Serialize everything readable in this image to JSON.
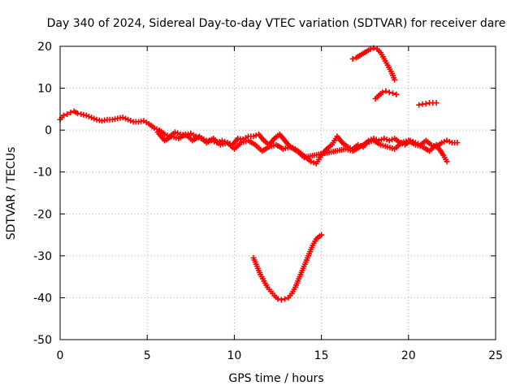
{
  "chart_data": {
    "type": "scatter",
    "title": "Day 340 of 2024, Sidereal Day-to-day VTEC variation (SDTVAR) for receiver dare",
    "xlabel": "GPS time / hours",
    "ylabel": "SDTVAR / TECUs",
    "xlim": [
      0,
      25
    ],
    "ylim": [
      -50,
      20
    ],
    "xticks": [
      0,
      5,
      10,
      15,
      20,
      25
    ],
    "yticks": [
      -50,
      -40,
      -30,
      -20,
      -10,
      0,
      10,
      20
    ],
    "grid": true,
    "marker": "plus",
    "series": [
      {
        "name": "main-band",
        "color": "#ff0000",
        "x": [
          0.0,
          0.2,
          0.4,
          0.6,
          0.8,
          1.0,
          1.2,
          1.5,
          1.8,
          2.1,
          2.4,
          2.7,
          3.0,
          3.3,
          3.6,
          3.9,
          4.2,
          4.5,
          4.8,
          5.1,
          5.4,
          5.7,
          6.0,
          6.3,
          6.6,
          6.9,
          7.2,
          7.5,
          7.8,
          8.1,
          8.4,
          8.7,
          9.0,
          9.3,
          9.6,
          9.9,
          10.2,
          10.5,
          10.8,
          11.1,
          11.4,
          11.7,
          12.0,
          12.3,
          12.6,
          12.9,
          13.2,
          13.5,
          13.8,
          14.1,
          14.4,
          14.7,
          15.0,
          15.3,
          15.6,
          15.9,
          16.2,
          16.5,
          16.8,
          17.1,
          17.4,
          17.7,
          18.0,
          18.3,
          18.6,
          18.9,
          19.2,
          19.5,
          19.8,
          20.1,
          20.4,
          20.7,
          21.0,
          21.3,
          21.6,
          21.9,
          22.2,
          22.5,
          22.8
        ],
        "y": [
          2.5,
          3.5,
          3.8,
          4.2,
          4.5,
          4.0,
          3.8,
          3.5,
          3.0,
          2.5,
          2.2,
          2.5,
          2.5,
          2.8,
          3.0,
          2.5,
          2.0,
          2.0,
          2.2,
          1.5,
          0.5,
          0.0,
          -1.0,
          -1.5,
          -0.5,
          -1.0,
          -1.2,
          -0.8,
          -1.5,
          -2.0,
          -2.5,
          -2.5,
          -3.0,
          -2.5,
          -3.0,
          -3.5,
          -2.0,
          -2.2,
          -1.5,
          -1.5,
          -1.0,
          -2.5,
          -3.5,
          -2.0,
          -1.0,
          -2.5,
          -4.0,
          -4.5,
          -5.5,
          -6.5,
          -7.5,
          -8.0,
          -6.0,
          -4.5,
          -3.5,
          -1.5,
          -3.0,
          -4.0,
          -4.5,
          -3.5,
          -4.0,
          -2.5,
          -2.0,
          -2.5,
          -2.0,
          -2.5,
          -2.0,
          -3.0,
          -3.5,
          -2.5,
          -3.0,
          -3.5,
          -2.5,
          -3.5,
          -4.0,
          -3.0,
          -2.5,
          -3.0,
          -3.0
        ]
      },
      {
        "name": "secondary-band",
        "color": "#ff0000",
        "x": [
          5.6,
          6.0,
          6.4,
          6.8,
          7.2,
          7.6,
          8.0,
          8.4,
          8.8,
          9.2,
          9.6,
          10.0,
          10.4,
          10.8,
          11.2,
          11.6,
          12.0,
          12.4,
          12.8,
          13.2,
          13.6,
          14.0,
          16.4,
          16.8,
          17.2,
          17.6,
          18.0,
          18.4,
          18.8,
          19.2,
          19.6,
          20.0,
          20.4,
          20.8,
          21.2,
          21.6,
          22.0,
          22.2
        ],
        "y": [
          -0.5,
          -2.5,
          -1.5,
          -2.0,
          -1.0,
          -2.5,
          -1.5,
          -3.0,
          -2.0,
          -3.5,
          -3.0,
          -4.5,
          -3.0,
          -2.5,
          -3.5,
          -5.0,
          -4.0,
          -3.5,
          -4.5,
          -4.0,
          -5.0,
          -6.5,
          -4.5,
          -5.0,
          -4.0,
          -3.0,
          -2.5,
          -3.5,
          -4.0,
          -4.5,
          -3.0,
          -2.5,
          -3.5,
          -4.0,
          -5.0,
          -3.5,
          -6.0,
          -7.5
        ]
      },
      {
        "name": "dip-arc",
        "color": "#ff0000",
        "x": [
          11.1,
          11.3,
          11.5,
          11.7,
          11.9,
          12.1,
          12.3,
          12.5,
          12.7,
          12.9,
          13.1,
          13.3,
          13.5,
          13.7,
          13.9,
          14.1,
          14.3,
          14.5,
          14.7,
          14.9,
          15.0
        ],
        "y": [
          -30.5,
          -32.5,
          -34.5,
          -36.0,
          -37.5,
          -38.5,
          -39.5,
          -40.3,
          -40.5,
          -40.3,
          -40.0,
          -39.0,
          -37.5,
          -35.5,
          -33.5,
          -31.5,
          -29.5,
          -27.5,
          -26.0,
          -25.3,
          -25.0
        ]
      },
      {
        "name": "upper-arc",
        "color": "#ff0000",
        "x": [
          16.8,
          17.0,
          17.2,
          17.4,
          17.6,
          17.8,
          18.0,
          18.2,
          18.4,
          18.6,
          18.8,
          19.0,
          19.2
        ],
        "y": [
          17.0,
          17.3,
          17.8,
          18.3,
          18.8,
          19.3,
          19.6,
          19.3,
          18.5,
          17.0,
          15.5,
          14.0,
          12.0
        ]
      },
      {
        "name": "upper-segment",
        "color": "#ff0000",
        "x": [
          18.1,
          18.3,
          18.5,
          18.7,
          18.9,
          19.1,
          19.3
        ],
        "y": [
          7.5,
          8.3,
          9.0,
          9.3,
          9.0,
          8.8,
          8.5
        ]
      },
      {
        "name": "late-segment",
        "color": "#ff0000",
        "x": [
          20.6,
          20.8,
          21.0,
          21.2,
          21.4,
          21.6
        ],
        "y": [
          6.0,
          6.2,
          6.3,
          6.5,
          6.5,
          6.5
        ]
      }
    ]
  }
}
